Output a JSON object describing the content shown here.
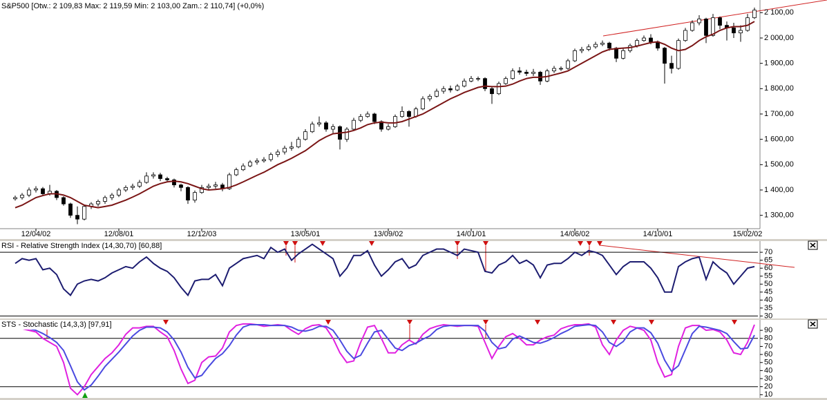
{
  "chart_data": [
    {
      "type": "candlestick",
      "title": "S&P500 [Otw.: 2 109,83  Max: 2 119,59  Min: 2 103,00  Zam.: 2 110,74] (+0,0%)",
      "categories": [
        null,
        null,
        null,
        "12/04/02",
        null,
        null,
        null,
        null,
        null,
        null,
        null,
        null,
        null,
        null,
        null,
        "12/08/01",
        null,
        null,
        null,
        null,
        null,
        null,
        null,
        null,
        null,
        null,
        null,
        "12/12/03",
        null,
        null,
        null,
        null,
        null,
        null,
        null,
        null,
        null,
        null,
        null,
        null,
        null,
        null,
        "13/05/01",
        null,
        null,
        null,
        null,
        null,
        null,
        null,
        null,
        null,
        null,
        null,
        "13/09/02",
        null,
        null,
        null,
        null,
        null,
        null,
        null,
        null,
        null,
        null,
        null,
        "14/01/01",
        null,
        null,
        null,
        null,
        null,
        null,
        null,
        null,
        null,
        null,
        null,
        null,
        null,
        null,
        "14/06/02",
        null,
        null,
        null,
        null,
        null,
        null,
        null,
        null,
        null,
        null,
        null,
        "14/10/01",
        null,
        null,
        null,
        null,
        null,
        null,
        null,
        null,
        null,
        null,
        null,
        null,
        "15/02/02",
        null
      ],
      "open": [
        1365,
        1370,
        1380,
        1400,
        1405,
        1385,
        1395,
        1370,
        1345,
        1300,
        1285,
        1335,
        1345,
        1355,
        1370,
        1380,
        1400,
        1410,
        1415,
        1430,
        1455,
        1460,
        1445,
        1440,
        1420,
        1410,
        1360,
        1390,
        1410,
        1415,
        1420,
        1405,
        1460,
        1480,
        1495,
        1510,
        1515,
        1520,
        1540,
        1550,
        1565,
        1570,
        1600,
        1630,
        1660,
        1665,
        1640,
        1650,
        1600,
        1640,
        1675,
        1690,
        1700,
        1670,
        1640,
        1650,
        1690,
        1710,
        1690,
        1720,
        1760,
        1770,
        1790,
        1800,
        1795,
        1810,
        1830,
        1840,
        1840,
        1800,
        1780,
        1820,
        1840,
        1870,
        1865,
        1860,
        1865,
        1830,
        1870,
        1880,
        1880,
        1910,
        1950,
        1955,
        1965,
        1975,
        1980,
        1960,
        1920,
        1950,
        1970,
        1990,
        2000,
        1985,
        1960,
        1900,
        1880,
        1990,
        2030,
        2060,
        2075,
        2010,
        2080,
        2050,
        2040,
        2020,
        2030,
        2080
      ],
      "high": [
        1378,
        1388,
        1410,
        1415,
        1412,
        1420,
        1400,
        1375,
        1350,
        1335,
        1342,
        1352,
        1362,
        1378,
        1388,
        1408,
        1418,
        1425,
        1440,
        1470,
        1470,
        1468,
        1452,
        1445,
        1425,
        1415,
        1398,
        1420,
        1425,
        1432,
        1428,
        1468,
        1488,
        1505,
        1518,
        1525,
        1530,
        1548,
        1560,
        1575,
        1590,
        1610,
        1640,
        1670,
        1690,
        1672,
        1660,
        1655,
        1648,
        1685,
        1700,
        1710,
        1705,
        1675,
        1660,
        1698,
        1730,
        1715,
        1728,
        1770,
        1778,
        1800,
        1810,
        1812,
        1818,
        1840,
        1850,
        1848,
        1845,
        1810,
        1828,
        1848,
        1880,
        1885,
        1875,
        1878,
        1870,
        1878,
        1890,
        1888,
        1918,
        1958,
        1965,
        1975,
        1985,
        1990,
        1985,
        1965,
        1958,
        1978,
        1998,
        2010,
        2015,
        1990,
        1965,
        1930,
        1998,
        2040,
        2070,
        2090,
        2080,
        2095,
        2085,
        2065,
        2060,
        2050,
        2095,
        2120
      ],
      "low": [
        1358,
        1362,
        1372,
        1390,
        1378,
        1378,
        1360,
        1338,
        1290,
        1265,
        1280,
        1325,
        1335,
        1345,
        1360,
        1372,
        1392,
        1400,
        1408,
        1425,
        1445,
        1435,
        1430,
        1410,
        1395,
        1345,
        1350,
        1385,
        1400,
        1405,
        1395,
        1400,
        1455,
        1475,
        1490,
        1500,
        1508,
        1512,
        1530,
        1540,
        1555,
        1565,
        1595,
        1625,
        1650,
        1630,
        1625,
        1560,
        1590,
        1635,
        1668,
        1685,
        1660,
        1630,
        1635,
        1645,
        1685,
        1650,
        1685,
        1715,
        1750,
        1765,
        1780,
        1785,
        1790,
        1805,
        1825,
        1830,
        1790,
        1740,
        1775,
        1815,
        1835,
        1855,
        1850,
        1850,
        1815,
        1825,
        1862,
        1870,
        1875,
        1905,
        1940,
        1948,
        1958,
        1968,
        1950,
        1905,
        1915,
        1942,
        1962,
        1985,
        1975,
        1950,
        1820,
        1860,
        1875,
        1985,
        2025,
        2050,
        1980,
        2005,
        2035,
        1990,
        2000,
        1985,
        2025,
        2075
      ],
      "close": [
        1370,
        1380,
        1400,
        1405,
        1385,
        1395,
        1370,
        1345,
        1300,
        1285,
        1335,
        1345,
        1355,
        1370,
        1380,
        1400,
        1410,
        1415,
        1430,
        1455,
        1460,
        1445,
        1440,
        1420,
        1410,
        1360,
        1390,
        1410,
        1415,
        1420,
        1405,
        1460,
        1480,
        1495,
        1510,
        1515,
        1520,
        1540,
        1550,
        1565,
        1570,
        1600,
        1630,
        1660,
        1665,
        1640,
        1650,
        1600,
        1640,
        1675,
        1690,
        1700,
        1670,
        1640,
        1650,
        1690,
        1710,
        1690,
        1720,
        1760,
        1770,
        1790,
        1800,
        1795,
        1810,
        1830,
        1840,
        1840,
        1800,
        1780,
        1820,
        1840,
        1870,
        1865,
        1860,
        1865,
        1830,
        1870,
        1880,
        1880,
        1910,
        1950,
        1955,
        1965,
        1975,
        1980,
        1960,
        1920,
        1950,
        1970,
        1990,
        2000,
        1985,
        1960,
        1900,
        1880,
        1990,
        2030,
        2060,
        2075,
        2010,
        2080,
        2050,
        2040,
        2020,
        2030,
        2080,
        2110
      ],
      "up_color": "#ffffff",
      "down_color": "#000000",
      "overlay": {
        "color": "#7a1515",
        "values": [
          1330,
          1340,
          1355,
          1370,
          1378,
          1385,
          1385,
          1380,
          1370,
          1355,
          1340,
          1335,
          1330,
          1335,
          1340,
          1350,
          1360,
          1372,
          1385,
          1400,
          1415,
          1425,
          1432,
          1435,
          1432,
          1425,
          1415,
          1405,
          1400,
          1402,
          1405,
          1410,
          1420,
          1432,
          1445,
          1458,
          1470,
          1485,
          1500,
          1512,
          1525,
          1540,
          1555,
          1575,
          1595,
          1610,
          1622,
          1625,
          1628,
          1635,
          1645,
          1658,
          1665,
          1668,
          1665,
          1665,
          1670,
          1680,
          1690,
          1700,
          1715,
          1730,
          1745,
          1760,
          1772,
          1785,
          1795,
          1805,
          1810,
          1808,
          1808,
          1810,
          1818,
          1830,
          1840,
          1845,
          1845,
          1848,
          1855,
          1862,
          1870,
          1885,
          1900,
          1915,
          1930,
          1945,
          1955,
          1958,
          1960,
          1962,
          1968,
          1975,
          1982,
          1985,
          1975,
          1960,
          1950,
          1955,
          1970,
          1990,
          2005,
          2015,
          2030,
          2040,
          2045,
          2045,
          2050,
          2065
        ]
      },
      "ylim": [
        1250,
        2150
      ],
      "yticks": [
        {
          "value": 1300,
          "label": "1 300,00"
        },
        {
          "value": 1400,
          "label": "1 400,00"
        },
        {
          "value": 1500,
          "label": "1 500,00"
        },
        {
          "value": 1600,
          "label": "1 600,00"
        },
        {
          "value": 1700,
          "label": "1 700,00"
        },
        {
          "value": 1800,
          "label": "1 800,00"
        },
        {
          "value": 1900,
          "label": "1 900,00"
        },
        {
          "value": 2000,
          "label": "2 000,00"
        },
        {
          "value": 2100,
          "label": "2 100,00"
        }
      ]
    },
    {
      "type": "line",
      "title": "RSI - Relative Strength Index (14,30,70) [60,88]",
      "series": [
        {
          "color": "#1c1c70",
          "values": [
            63,
            66,
            65,
            66,
            59,
            60,
            56,
            47,
            43,
            50,
            52,
            53,
            52,
            54,
            57,
            59,
            61,
            60,
            64,
            67,
            63,
            60,
            58,
            54,
            48,
            43,
            52,
            53,
            53,
            56,
            49,
            60,
            63,
            66,
            67,
            68,
            66,
            73,
            70,
            72,
            65,
            69,
            72,
            75,
            72,
            69,
            66,
            55,
            60,
            68,
            68,
            71,
            62,
            55,
            59,
            64,
            66,
            60,
            62,
            68,
            70,
            72,
            72,
            70,
            68,
            72,
            71,
            70,
            58,
            57,
            62,
            64,
            68,
            63,
            65,
            62,
            54,
            62,
            63,
            63,
            66,
            70,
            68,
            71,
            70,
            68,
            62,
            56,
            61,
            64,
            64,
            64,
            60,
            54,
            45,
            45,
            61,
            64,
            66,
            67,
            53,
            64,
            60,
            57,
            50,
            55,
            60,
            61
          ]
        }
      ],
      "levels": [
        30,
        70
      ],
      "ylim": [
        28,
        77
      ],
      "yticks": [
        30,
        35,
        40,
        45,
        50,
        55,
        60,
        65,
        70
      ]
    },
    {
      "type": "line",
      "title": "STS - Stochastic (14,3,3) [97,91]",
      "series": [
        {
          "color": "#e020e0",
          "values": [
            96,
            92,
            90,
            88,
            80,
            75,
            70,
            50,
            18,
            10,
            20,
            35,
            45,
            55,
            62,
            72,
            85,
            93,
            93,
            95,
            95,
            88,
            82,
            65,
            42,
            24,
            28,
            50,
            57,
            58,
            68,
            88,
            96,
            98,
            98,
            97,
            95,
            96,
            97,
            96,
            90,
            85,
            92,
            96,
            97,
            93,
            80,
            62,
            50,
            52,
            75,
            94,
            96,
            80,
            62,
            62,
            72,
            78,
            73,
            85,
            92,
            95,
            97,
            96,
            95,
            96,
            96,
            95,
            75,
            55,
            70,
            82,
            86,
            80,
            72,
            72,
            78,
            82,
            84,
            92,
            95,
            97,
            97,
            98,
            94,
            72,
            60,
            78,
            90,
            95,
            93,
            90,
            78,
            50,
            32,
            35,
            70,
            93,
            96,
            96,
            90,
            91,
            88,
            78,
            62,
            60,
            75,
            97
          ]
        },
        {
          "color": "#4a4ae0",
          "values": [
            96,
            94,
            92,
            90,
            86,
            81,
            75,
            65,
            46,
            26,
            16,
            22,
            33,
            45,
            54,
            63,
            73,
            83,
            90,
            94,
            94,
            93,
            88,
            78,
            63,
            44,
            31,
            34,
            45,
            55,
            61,
            71,
            84,
            94,
            97,
            97,
            97,
            96,
            96,
            96,
            94,
            90,
            89,
            91,
            95,
            95,
            90,
            78,
            64,
            55,
            59,
            74,
            88,
            90,
            79,
            68,
            65,
            71,
            74,
            79,
            83,
            91,
            95,
            96,
            96,
            96,
            96,
            96,
            89,
            75,
            67,
            69,
            79,
            83,
            79,
            75,
            74,
            77,
            81,
            86,
            90,
            95,
            96,
            97,
            96,
            88,
            75,
            70,
            76,
            88,
            93,
            93,
            87,
            74,
            53,
            39,
            46,
            66,
            86,
            95,
            94,
            92,
            90,
            86,
            76,
            67,
            68,
            84
          ]
        }
      ],
      "levels": [
        20,
        80
      ],
      "ylim": [
        6,
        103
      ],
      "yticks": [
        10,
        20,
        30,
        40,
        50,
        60,
        70,
        80,
        90
      ]
    }
  ]
}
